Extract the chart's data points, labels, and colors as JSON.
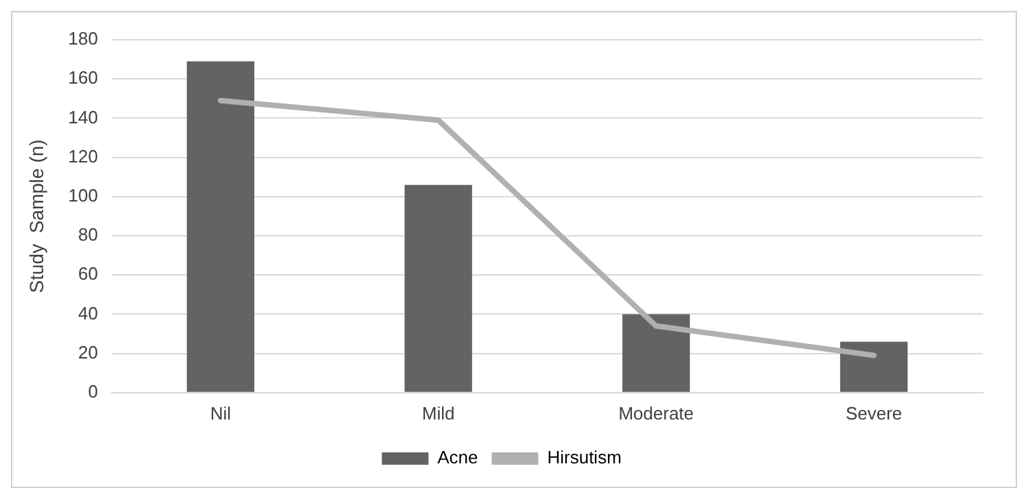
{
  "chart_data": {
    "type": "bar",
    "ylabel": "Study  Sample (n)",
    "categories": [
      "Nil",
      "Mild",
      "Moderate",
      "Severe"
    ],
    "series": [
      {
        "name": "Acne",
        "color": "#636363",
        "values": [
          169,
          106,
          40,
          26
        ]
      },
      {
        "name": "Hirsutism",
        "type": "line",
        "color": "#b0b0b0",
        "values": [
          149,
          139,
          34,
          19
        ]
      }
    ],
    "ylim": [
      0,
      180
    ],
    "yticks": [
      0,
      20,
      40,
      60,
      80,
      100,
      120,
      140,
      160,
      180
    ],
    "grid": "y",
    "legend": "bottom",
    "marker": "none"
  }
}
